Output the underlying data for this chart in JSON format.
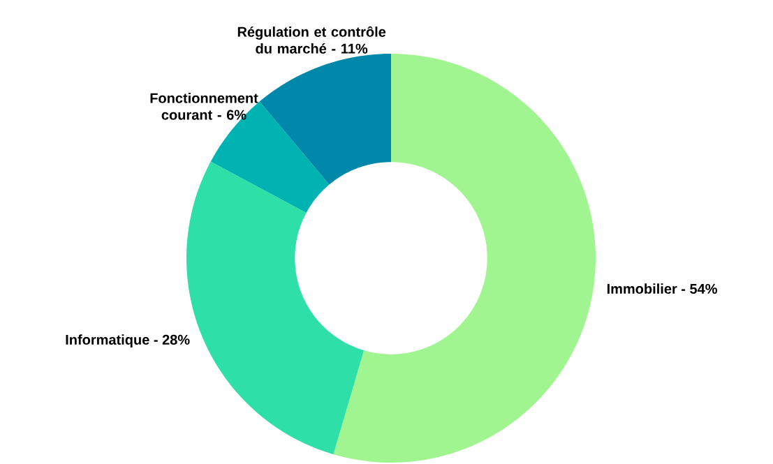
{
  "chart_data": {
    "type": "donut",
    "categories": [
      "Immobilier - 54%",
      "Informatique - 28%",
      "Fonctionnement courant - 6%",
      "Régulation et contrôle du marché - 11%"
    ],
    "values": [
      54,
      28,
      6,
      11
    ],
    "colors": [
      "#a0f590",
      "#2ee0a8",
      "#00b3b3",
      "#0088aa"
    ]
  }
}
